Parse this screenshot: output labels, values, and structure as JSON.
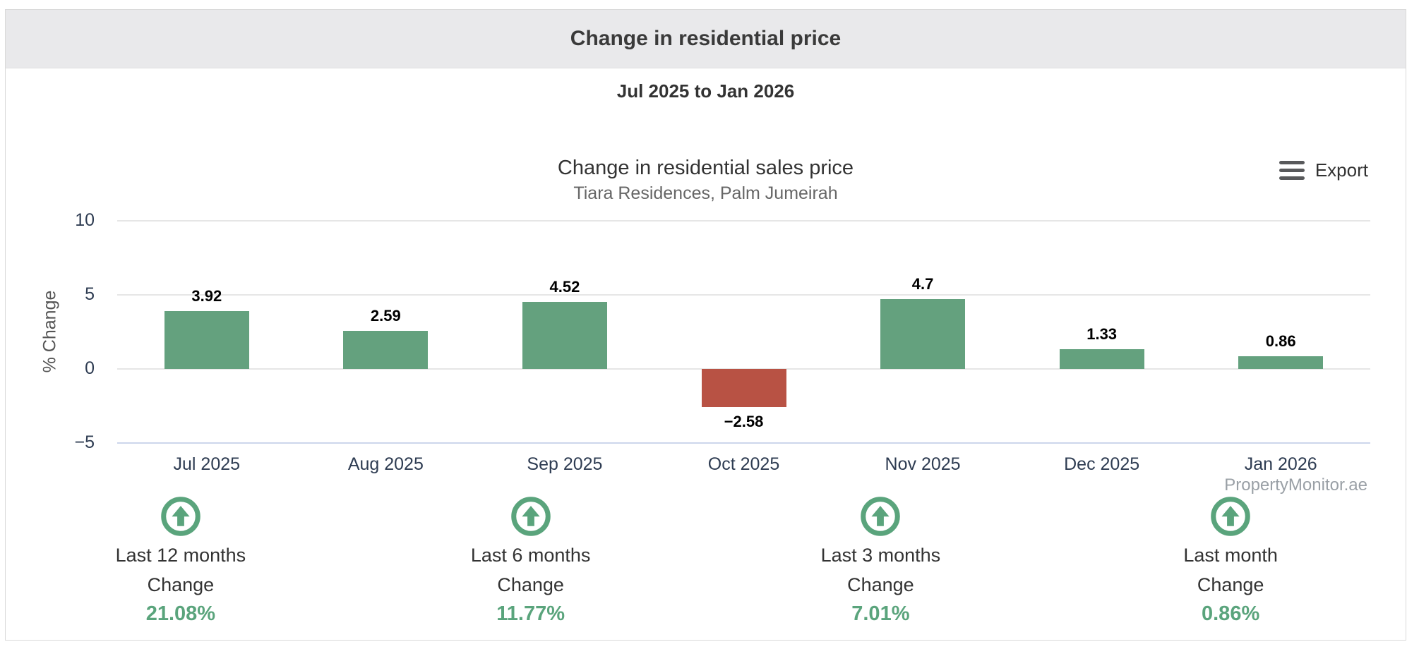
{
  "panel": {
    "title": "Change in residential price",
    "date_range": "Jul 2025 to Jan 2026"
  },
  "toolbar": {
    "export_label": "Export"
  },
  "watermark": "PropertyMonitor.ae",
  "chart_data": {
    "type": "bar",
    "title": "Change in residential sales price",
    "subtitle": "Tiara Residences, Palm Jumeirah",
    "xlabel": "",
    "ylabel": "% Change",
    "ylim": [
      -5,
      10
    ],
    "yticks": [
      10,
      5,
      0,
      -5
    ],
    "categories": [
      "Jul 2025",
      "Aug 2025",
      "Sep 2025",
      "Oct 2025",
      "Nov 2025",
      "Dec 2025",
      "Jan 2026"
    ],
    "values": [
      3.92,
      2.59,
      4.52,
      -2.58,
      4.7,
      1.33,
      0.86
    ],
    "value_labels": [
      "3.92",
      "2.59",
      "4.52",
      "−2.58",
      "4.7",
      "1.33",
      "0.86"
    ],
    "grid": true,
    "legend_position": "none",
    "positive_color": "#64a17e",
    "negative_color": "#b85244"
  },
  "stats": [
    {
      "icon": "up-arrow-circle-icon",
      "period": "Last 12 months",
      "caption": "Change",
      "value": "21.08%"
    },
    {
      "icon": "up-arrow-circle-icon",
      "period": "Last 6 months",
      "caption": "Change",
      "value": "11.77%"
    },
    {
      "icon": "up-arrow-circle-icon",
      "period": "Last 3 months",
      "caption": "Change",
      "value": "7.01%"
    },
    {
      "icon": "up-arrow-circle-icon",
      "period": "Last month",
      "caption": "Change",
      "value": "0.86%"
    }
  ],
  "colors": {
    "positive": "#64a17e",
    "negative": "#b85244",
    "stat_green": "#5aa47c",
    "header_bg": "#e9e9eb",
    "grid": "#e6e6e6",
    "axis_line": "#ccd6eb",
    "tick_text": "#2e3c52"
  }
}
